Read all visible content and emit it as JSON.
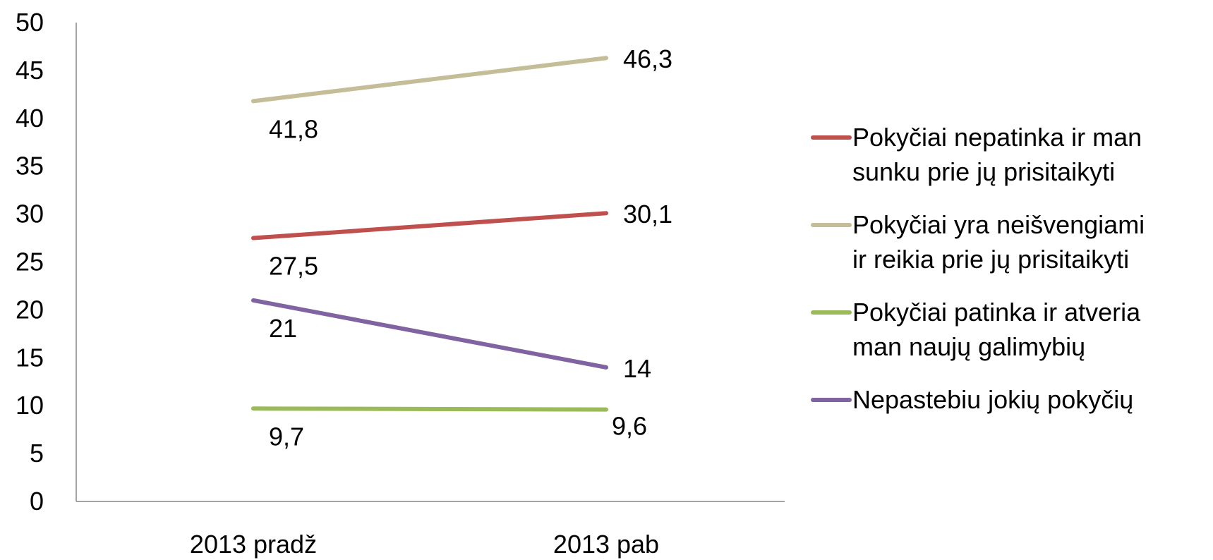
{
  "chart_data": {
    "type": "line",
    "title": "",
    "xlabel": "",
    "ylabel": "",
    "categories": [
      "2013 pradž",
      "2013 pab"
    ],
    "ylim": [
      0,
      50
    ],
    "yticks": [
      "0",
      "5",
      "10",
      "15",
      "20",
      "25",
      "30",
      "35",
      "40",
      "45",
      "50"
    ],
    "grid": false,
    "legend_position": "right",
    "series": [
      {
        "name": "Pokyčiai nepatinka ir man sunku prie jų prisitaikyti",
        "legend_lines": [
          "Pokyčiai nepatinka ir man",
          "sunku prie jų prisitaikyti"
        ],
        "color": "#C0504D",
        "values": [
          27.5,
          30.1
        ],
        "labels": [
          "27,5",
          "30,1"
        ]
      },
      {
        "name": "Pokyčiai yra neišvengiami ir reikia prie jų prisitaikyti",
        "legend_lines": [
          "Pokyčiai yra neišvengiami",
          "ir reikia prie jų prisitaikyti"
        ],
        "color": "#C4BD97",
        "values": [
          41.8,
          46.3
        ],
        "labels": [
          "41,8",
          "46,3"
        ]
      },
      {
        "name": "Pokyčiai patinka ir atveria man naujų galimybių",
        "legend_lines": [
          "Pokyčiai patinka ir atveria",
          "man naujų galimybių"
        ],
        "color": "#9BBB59",
        "values": [
          9.7,
          9.6
        ],
        "labels": [
          "9,7",
          "9,6"
        ]
      },
      {
        "name": "Nepastebiu jokių pokyčių",
        "legend_lines": [
          "Nepastebiu jokių pokyčių"
        ],
        "color": "#8064A2",
        "values": [
          21,
          14
        ],
        "labels": [
          "21",
          "14"
        ]
      }
    ]
  }
}
